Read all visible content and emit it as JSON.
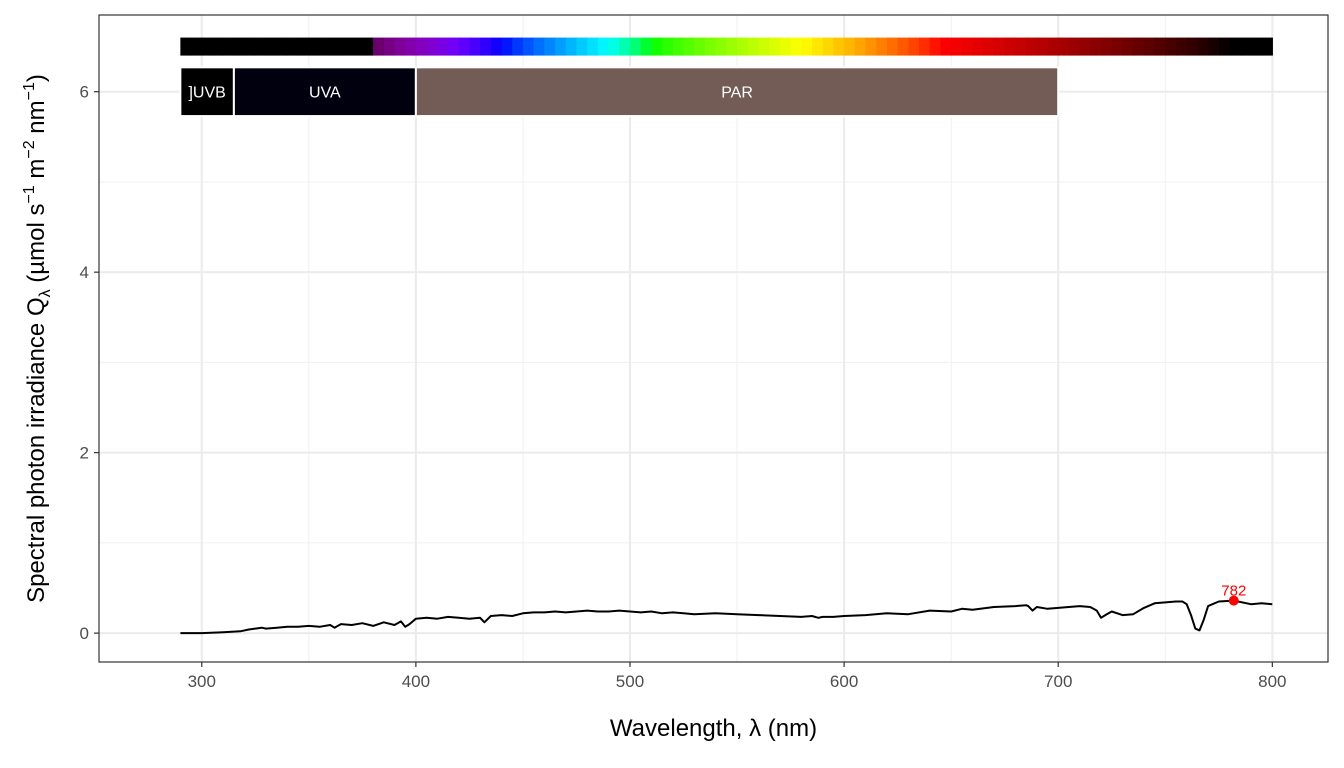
{
  "chart_data": {
    "type": "line",
    "xlabel": "Wavelength, λ (nm)",
    "ylabel": {
      "prefix": "Spectral  photon  irradiance  Q",
      "subscript": "λ",
      "units_open": "  (µmol s",
      "sup1": "−1",
      "m": " m",
      "sup2": "−2",
      "nm": " nm",
      "sup3": "−1",
      "units_close": ")"
    },
    "xlim": [
      252,
      826
    ],
    "ylim": [
      -0.32,
      6.85
    ],
    "xticks": [
      300,
      400,
      500,
      600,
      700,
      800
    ],
    "yticks": [
      0,
      2,
      4,
      6
    ],
    "xtick_labels": [
      "300",
      "400",
      "500",
      "600",
      "700",
      "800"
    ],
    "ytick_labels": [
      "0",
      "2",
      "4",
      "6"
    ],
    "grid": true,
    "series": [
      {
        "color": "#000000",
        "x": [
          290,
          300,
          310,
          318,
          322,
          325,
          328,
          330,
          335,
          340,
          345,
          350,
          355,
          360,
          362,
          365,
          370,
          375,
          380,
          385,
          390,
          393,
          395,
          397,
          400,
          405,
          410,
          415,
          420,
          425,
          430,
          432,
          435,
          440,
          445,
          450,
          455,
          460,
          465,
          470,
          475,
          480,
          485,
          490,
          495,
          500,
          505,
          510,
          515,
          520,
          525,
          530,
          540,
          550,
          560,
          570,
          580,
          585,
          588,
          590,
          595,
          600,
          610,
          620,
          630,
          640,
          650,
          655,
          660,
          670,
          680,
          685,
          686,
          688,
          690,
          695,
          700,
          705,
          710,
          715,
          718,
          720,
          722,
          725,
          730,
          735,
          740,
          745,
          750,
          755,
          758,
          760,
          762,
          764,
          766,
          768,
          770,
          775,
          782,
          790,
          795,
          800
        ],
        "y": [
          0.0,
          0.0,
          0.01,
          0.02,
          0.04,
          0.05,
          0.06,
          0.05,
          0.06,
          0.07,
          0.07,
          0.08,
          0.07,
          0.09,
          0.06,
          0.1,
          0.09,
          0.11,
          0.08,
          0.12,
          0.09,
          0.13,
          0.07,
          0.1,
          0.16,
          0.17,
          0.16,
          0.18,
          0.17,
          0.16,
          0.17,
          0.12,
          0.19,
          0.2,
          0.19,
          0.22,
          0.23,
          0.23,
          0.24,
          0.23,
          0.24,
          0.25,
          0.24,
          0.24,
          0.25,
          0.24,
          0.23,
          0.24,
          0.22,
          0.23,
          0.22,
          0.21,
          0.22,
          0.21,
          0.2,
          0.19,
          0.18,
          0.19,
          0.17,
          0.18,
          0.18,
          0.19,
          0.2,
          0.22,
          0.21,
          0.25,
          0.24,
          0.27,
          0.26,
          0.29,
          0.3,
          0.31,
          0.3,
          0.25,
          0.29,
          0.27,
          0.28,
          0.29,
          0.3,
          0.29,
          0.25,
          0.17,
          0.2,
          0.24,
          0.2,
          0.21,
          0.28,
          0.33,
          0.34,
          0.35,
          0.35,
          0.32,
          0.2,
          0.05,
          0.03,
          0.15,
          0.3,
          0.35,
          0.36,
          0.32,
          0.33,
          0.32
        ]
      }
    ],
    "annotations": {
      "peak": {
        "x": 782,
        "y": 0.36,
        "label": "782",
        "color": "#ff0000"
      },
      "color_bar": {
        "xmin": 290,
        "xmax": 800,
        "y_center": 6.5
      },
      "bands": [
        {
          "label": "]UVB",
          "xmin": 290,
          "xmax": 315,
          "color": "#000000"
        },
        {
          "label": "UVA",
          "xmin": 315,
          "xmax": 400,
          "color": "#01000e"
        },
        {
          "label": "PAR",
          "xmin": 400,
          "xmax": 700,
          "color": "#735c56"
        }
      ],
      "band_y": [
        5.73,
        6.27
      ]
    }
  }
}
